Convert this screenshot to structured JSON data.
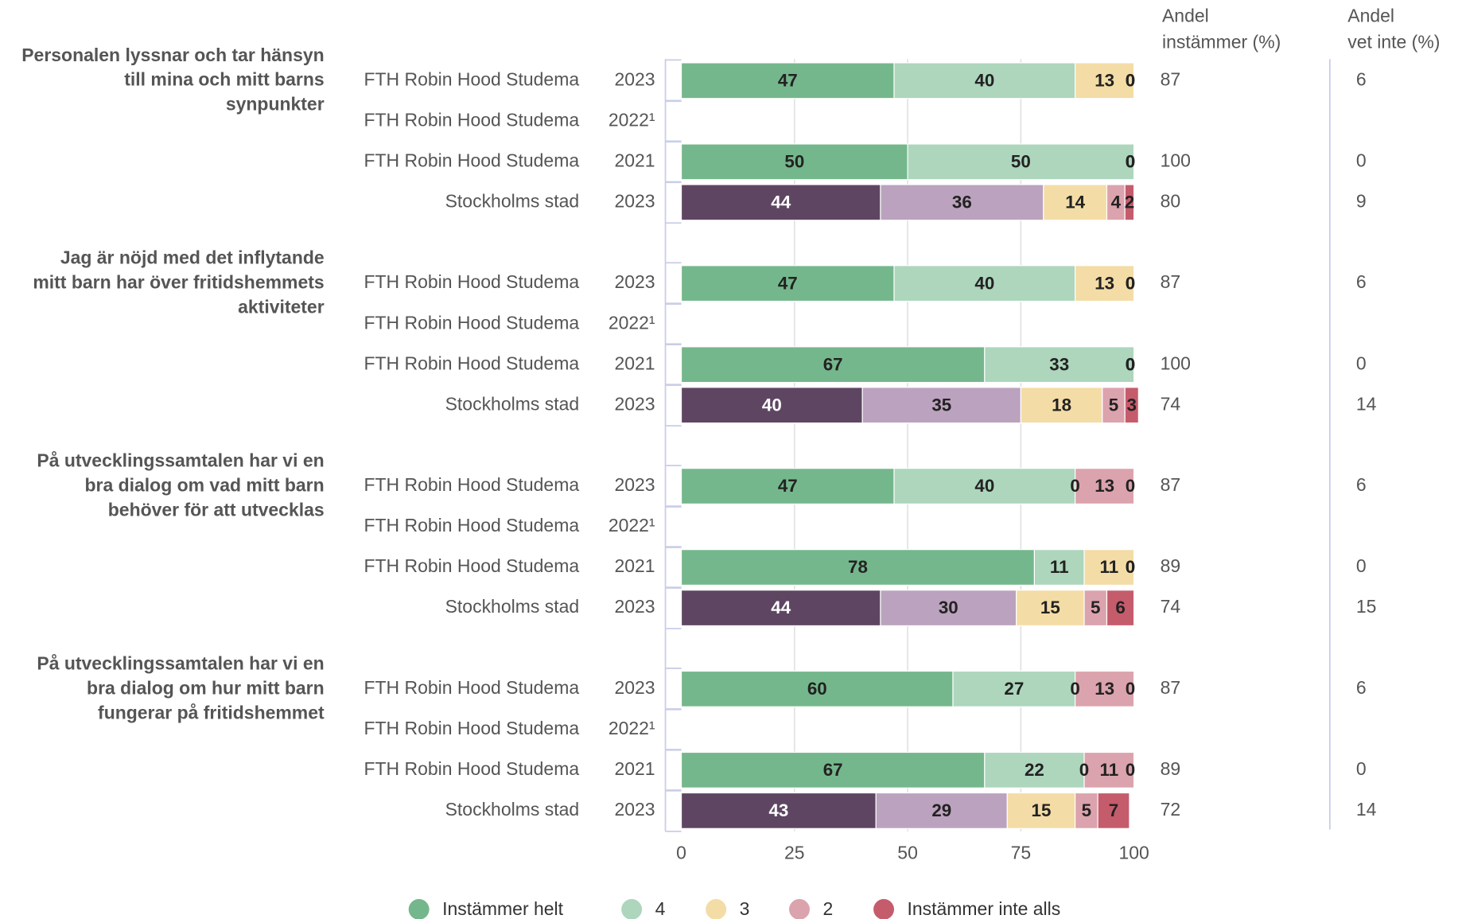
{
  "chart_data": {
    "type": "bar",
    "orientation": "horizontal",
    "stacked": true,
    "xlim": [
      0,
      100
    ],
    "xticks": [
      0,
      25,
      50,
      75,
      100
    ],
    "grid": true,
    "legend": "bottom",
    "groups": [
      {
        "lines": [
          "Personalen lyssnar och tar hänsyn",
          "till mina och mitt barns",
          "synpunkter"
        ]
      },
      {
        "lines": [
          "Jag är nöjd med det inflytande",
          "mitt barn har över fritidshemmets",
          "aktiviteter"
        ]
      },
      {
        "lines": [
          "På utvecklingssamtalen har vi en",
          "bra dialog om vad mitt barn",
          "behöver för att utvecklas"
        ]
      },
      {
        "lines": [
          "På utvecklingssamtalen har vi en",
          "bra dialog om hur mitt barn",
          "fungerar på fritidshemmet"
        ]
      }
    ],
    "rows": [
      {
        "entity": "FTH Robin Hood Studema",
        "year": "2023",
        "alt": false
      },
      {
        "entity": "FTH Robin Hood Studema",
        "year": "2022¹",
        "alt": false
      },
      {
        "entity": "FTH Robin Hood Studema",
        "year": "2021",
        "alt": false
      },
      {
        "entity": "Stockholms stad",
        "year": "2023",
        "alt": true
      },
      {
        "entity": "FTH Robin Hood Studema",
        "year": "2023",
        "alt": false
      },
      {
        "entity": "FTH Robin Hood Studema",
        "year": "2022¹",
        "alt": false
      },
      {
        "entity": "FTH Robin Hood Studema",
        "year": "2021",
        "alt": false
      },
      {
        "entity": "Stockholms stad",
        "year": "2023",
        "alt": true
      },
      {
        "entity": "FTH Robin Hood Studema",
        "year": "2023",
        "alt": false
      },
      {
        "entity": "FTH Robin Hood Studema",
        "year": "2022¹",
        "alt": false
      },
      {
        "entity": "FTH Robin Hood Studema",
        "year": "2021",
        "alt": false
      },
      {
        "entity": "Stockholms stad",
        "year": "2023",
        "alt": true
      },
      {
        "entity": "FTH Robin Hood Studema",
        "year": "2023",
        "alt": false
      },
      {
        "entity": "FTH Robin Hood Studema",
        "year": "2022¹",
        "alt": false
      },
      {
        "entity": "FTH Robin Hood Studema",
        "year": "2021",
        "alt": false
      },
      {
        "entity": "Stockholms stad",
        "year": "2023",
        "alt": true
      }
    ],
    "series": [
      {
        "name": "Instämmer helt",
        "color": "#75b78c",
        "alt_color": "#5e4663",
        "label_color": "#222",
        "alt_label_color": "#fff",
        "values": [
          47,
          null,
          50,
          44,
          47,
          null,
          67,
          40,
          47,
          null,
          78,
          44,
          60,
          null,
          67,
          43
        ]
      },
      {
        "name": "4",
        "color": "#add6bd",
        "alt_color": "#bba2be",
        "label_color": "#222",
        "alt_label_color": "#222",
        "values": [
          40,
          null,
          50,
          36,
          40,
          null,
          33,
          35,
          40,
          null,
          11,
          30,
          27,
          null,
          22,
          29
        ]
      },
      {
        "name": "3",
        "color": "#f3dca6",
        "alt_color": "#f3dca6",
        "label_color": "#222",
        "alt_label_color": "#222",
        "values": [
          13,
          null,
          0,
          14,
          13,
          null,
          0,
          18,
          0,
          null,
          11,
          15,
          0,
          null,
          0,
          15
        ]
      },
      {
        "name": "2",
        "color": "#dba3ad",
        "alt_color": "#dba3ad",
        "label_color": "#222",
        "alt_label_color": "#222",
        "values": [
          0,
          null,
          0,
          4,
          0,
          null,
          0,
          5,
          13,
          null,
          0,
          5,
          13,
          null,
          11,
          5
        ]
      },
      {
        "name": "Instämmer inte alls",
        "color": "#c55c6c",
        "alt_color": "#c55c6c",
        "label_color": "#222",
        "alt_label_color": "#222",
        "values": [
          0,
          null,
          0,
          2,
          0,
          null,
          0,
          3,
          0,
          null,
          0,
          6,
          0,
          null,
          0,
          7
        ]
      }
    ],
    "columns": [
      {
        "header_lines": [
          "Andel",
          "instämmer (%)"
        ],
        "values": [
          87,
          null,
          100,
          80,
          87,
          null,
          100,
          74,
          87,
          null,
          89,
          74,
          87,
          null,
          89,
          72
        ]
      },
      {
        "header_lines": [
          "Andel",
          "vet inte (%)"
        ],
        "values": [
          6,
          null,
          0,
          9,
          6,
          null,
          0,
          14,
          6,
          null,
          0,
          15,
          6,
          null,
          0,
          14
        ]
      }
    ]
  }
}
